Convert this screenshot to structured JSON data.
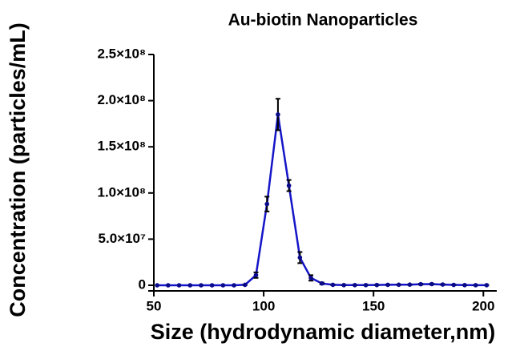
{
  "chart_data": {
    "type": "line",
    "title": "Au-biotin Nanoparticles",
    "x_label": "Size (hydrodynamic diameter,nm)",
    "y_label": "Concentration (particles/mL)",
    "x": [
      51.5,
      56.5,
      61.5,
      66.5,
      71.5,
      76.5,
      81.5,
      86.5,
      91.5,
      96.5,
      101.5,
      106.5,
      111.5,
      116.5,
      121.5,
      126.5,
      131.5,
      136.5,
      141.5,
      146.5,
      151.5,
      156.5,
      161.5,
      166.5,
      171.5,
      176.5,
      181.5,
      186.5,
      191.5,
      196.5,
      201.5
    ],
    "series": [
      {
        "name": "Au-biotin",
        "color": "#1414c8",
        "values": [
          0,
          0,
          0,
          0,
          0,
          0,
          0,
          0,
          500000,
          11000000,
          88000000,
          185000000,
          108000000,
          30000000,
          8000000,
          2000000,
          500000,
          200000,
          200000,
          200000,
          300000,
          500000,
          600000,
          700000,
          1200000,
          1300000,
          800000,
          400000,
          200000,
          100000,
          100000
        ],
        "errors": [
          0,
          0,
          0,
          0,
          0,
          0,
          0,
          0,
          300000,
          3000000,
          8000000,
          17000000,
          6000000,
          6000000,
          3000000,
          1000000,
          300000,
          200000,
          200000,
          200000,
          200000,
          300000,
          300000,
          300000,
          500000,
          500000,
          400000,
          200000,
          100000,
          100000,
          100000
        ]
      }
    ],
    "xlim": [
      50,
      205
    ],
    "xticks": [
      50,
      100,
      150,
      200
    ],
    "ylim": [
      0,
      250000000
    ],
    "yticks": [
      0,
      {
        "value": 50000000,
        "label": "5.0×10⁷"
      },
      {
        "value": 100000000,
        "label": "1.0×10⁸"
      },
      {
        "value": 150000000,
        "label": "1.5×10⁸"
      },
      {
        "value": 200000000,
        "label": "2.0×10⁸"
      },
      {
        "value": 250000000,
        "label": "2.5×10⁸"
      }
    ]
  }
}
